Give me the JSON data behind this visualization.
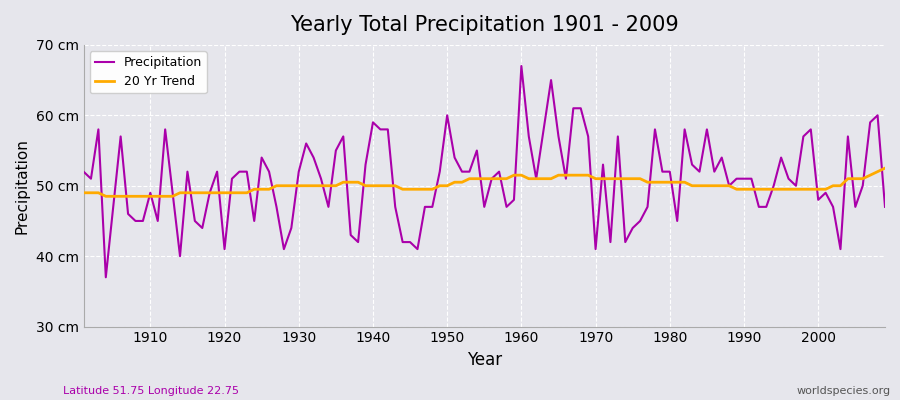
{
  "title": "Yearly Total Precipitation 1901 - 2009",
  "xlabel": "Year",
  "ylabel": "Precipitation",
  "subtitle_left": "Latitude 51.75 Longitude 22.75",
  "subtitle_right": "worldspecies.org",
  "ylim": [
    30,
    70
  ],
  "yticks": [
    30,
    40,
    50,
    60,
    70
  ],
  "ytick_labels": [
    "30 cm",
    "40 cm",
    "50 cm",
    "60 cm",
    "70 cm"
  ],
  "xlim": [
    1901,
    2009
  ],
  "bg_color": "#e6e6ec",
  "plot_bg_color": "#e6e6ec",
  "precip_color": "#aa00aa",
  "trend_color": "#ffaa00",
  "precip_linewidth": 1.5,
  "trend_linewidth": 2.0,
  "years": [
    1901,
    1902,
    1903,
    1904,
    1905,
    1906,
    1907,
    1908,
    1909,
    1910,
    1911,
    1912,
    1913,
    1914,
    1915,
    1916,
    1917,
    1918,
    1919,
    1920,
    1921,
    1922,
    1923,
    1924,
    1925,
    1926,
    1927,
    1928,
    1929,
    1930,
    1931,
    1932,
    1933,
    1934,
    1935,
    1936,
    1937,
    1938,
    1939,
    1940,
    1941,
    1942,
    1943,
    1944,
    1945,
    1946,
    1947,
    1948,
    1949,
    1950,
    1951,
    1952,
    1953,
    1954,
    1955,
    1956,
    1957,
    1958,
    1959,
    1960,
    1961,
    1962,
    1963,
    1964,
    1965,
    1966,
    1967,
    1968,
    1969,
    1970,
    1971,
    1972,
    1973,
    1974,
    1975,
    1976,
    1977,
    1978,
    1979,
    1980,
    1981,
    1982,
    1983,
    1984,
    1985,
    1986,
    1987,
    1988,
    1989,
    1990,
    1991,
    1992,
    1993,
    1994,
    1995,
    1996,
    1997,
    1998,
    1999,
    2000,
    2001,
    2002,
    2003,
    2004,
    2005,
    2006,
    2007,
    2008,
    2009
  ],
  "precip": [
    52,
    51,
    58,
    37,
    47,
    57,
    46,
    45,
    45,
    49,
    45,
    58,
    49,
    40,
    52,
    45,
    44,
    49,
    52,
    41,
    51,
    52,
    52,
    45,
    54,
    52,
    47,
    41,
    44,
    52,
    56,
    54,
    51,
    47,
    55,
    57,
    43,
    42,
    53,
    59,
    58,
    58,
    47,
    42,
    42,
    41,
    47,
    47,
    52,
    60,
    54,
    52,
    52,
    55,
    47,
    51,
    52,
    47,
    48,
    67,
    57,
    51,
    58,
    65,
    57,
    51,
    61,
    61,
    57,
    41,
    53,
    42,
    57,
    42,
    44,
    45,
    47,
    58,
    52,
    52,
    45,
    58,
    53,
    52,
    58,
    52,
    54,
    50,
    51,
    51,
    51,
    47,
    47,
    50,
    54,
    51,
    50,
    57,
    58,
    48,
    49,
    47,
    41,
    57,
    47,
    50,
    59,
    60,
    47
  ],
  "trend": [
    49.0,
    49.0,
    49.0,
    48.5,
    48.5,
    48.5,
    48.5,
    48.5,
    48.5,
    48.5,
    48.5,
    48.5,
    48.5,
    49.0,
    49.0,
    49.0,
    49.0,
    49.0,
    49.0,
    49.0,
    49.0,
    49.0,
    49.0,
    49.5,
    49.5,
    49.5,
    50.0,
    50.0,
    50.0,
    50.0,
    50.0,
    50.0,
    50.0,
    50.0,
    50.0,
    50.5,
    50.5,
    50.5,
    50.0,
    50.0,
    50.0,
    50.0,
    50.0,
    49.5,
    49.5,
    49.5,
    49.5,
    49.5,
    50.0,
    50.0,
    50.5,
    50.5,
    51.0,
    51.0,
    51.0,
    51.0,
    51.0,
    51.0,
    51.5,
    51.5,
    51.0,
    51.0,
    51.0,
    51.0,
    51.5,
    51.5,
    51.5,
    51.5,
    51.5,
    51.0,
    51.0,
    51.0,
    51.0,
    51.0,
    51.0,
    51.0,
    50.5,
    50.5,
    50.5,
    50.5,
    50.5,
    50.5,
    50.0,
    50.0,
    50.0,
    50.0,
    50.0,
    50.0,
    49.5,
    49.5,
    49.5,
    49.5,
    49.5,
    49.5,
    49.5,
    49.5,
    49.5,
    49.5,
    49.5,
    49.5,
    49.5,
    50.0,
    50.0,
    51.0,
    51.0,
    51.0,
    51.5,
    52.0,
    52.5
  ]
}
